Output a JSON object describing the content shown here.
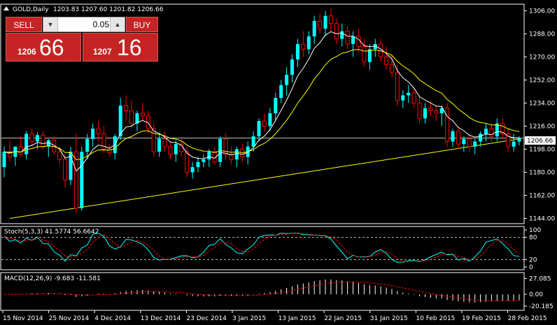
{
  "header": {
    "symbol_label": "GOLD,Daily",
    "ohlc": "1203.83 1207.60 1201.82 1206.66"
  },
  "trade_panel": {
    "sell_label": "SELL",
    "buy_label": "BUY",
    "lot_value": "0.05",
    "sell_price_small": "1206",
    "sell_price_big": "66",
    "buy_price_small": "1207",
    "buy_price_big": "16"
  },
  "price_axis": {
    "ticks": [
      "1306.00",
      "1288.00",
      "1270.00",
      "1252.00",
      "1234.00",
      "1216.00",
      "1198.00",
      "1180.00",
      "1162.00",
      "1144.00"
    ],
    "current_price": "1206.66"
  },
  "stoch": {
    "label": "Stoch(5,3,3) 41.5774 56.6642",
    "ticks": [
      "100",
      "80",
      "20",
      "0"
    ]
  },
  "macd": {
    "label": "MACD(12,26,9) -9.683 -11.581",
    "ticks": [
      "27.085",
      "0.00",
      "-20.185"
    ]
  },
  "time_axis": {
    "labels": [
      "15 Nov 2014",
      "25 Nov 2014",
      "4 Dec 2014",
      "13 Dec 2014",
      "23 Dec 2014",
      "3 Jan 2015",
      "13 Jan 2015",
      "22 Jan 2015",
      "31 Jan 2015",
      "10 Feb 2015",
      "19 Feb 2015",
      "28 Feb 2015"
    ]
  },
  "colors": {
    "bull": "#00ffff",
    "bear": "#ff0000",
    "ma_fast": "#ffffff",
    "ma_slow": "#ffff00",
    "trendline": "#ffff00",
    "stoch_main": "#00ffff",
    "stoch_signal": "#ff0000",
    "macd_hist": "#ffffff",
    "macd_signal": "#ff0000",
    "frame": "#ffffff"
  },
  "chart_data": {
    "type": "candlestick",
    "candles": [
      {
        "o": 1184,
        "h": 1200,
        "l": 1176,
        "c": 1196
      },
      {
        "o": 1196,
        "h": 1205,
        "l": 1188,
        "c": 1192
      },
      {
        "o": 1192,
        "h": 1200,
        "l": 1185,
        "c": 1200
      },
      {
        "o": 1200,
        "h": 1208,
        "l": 1192,
        "c": 1194
      },
      {
        "o": 1194,
        "h": 1212,
        "l": 1190,
        "c": 1210
      },
      {
        "o": 1210,
        "h": 1214,
        "l": 1200,
        "c": 1204
      },
      {
        "o": 1204,
        "h": 1211,
        "l": 1198,
        "c": 1209
      },
      {
        "o": 1209,
        "h": 1212,
        "l": 1198,
        "c": 1200
      },
      {
        "o": 1200,
        "h": 1206,
        "l": 1192,
        "c": 1205
      },
      {
        "o": 1205,
        "h": 1208,
        "l": 1194,
        "c": 1196
      },
      {
        "o": 1196,
        "h": 1200,
        "l": 1186,
        "c": 1190
      },
      {
        "o": 1190,
        "h": 1194,
        "l": 1168,
        "c": 1174
      },
      {
        "o": 1174,
        "h": 1200,
        "l": 1170,
        "c": 1196
      },
      {
        "o": 1196,
        "h": 1210,
        "l": 1148,
        "c": 1152
      },
      {
        "o": 1152,
        "h": 1200,
        "l": 1150,
        "c": 1196
      },
      {
        "o": 1196,
        "h": 1210,
        "l": 1190,
        "c": 1206
      },
      {
        "o": 1206,
        "h": 1218,
        "l": 1200,
        "c": 1214
      },
      {
        "o": 1214,
        "h": 1220,
        "l": 1204,
        "c": 1210
      },
      {
        "o": 1210,
        "h": 1216,
        "l": 1195,
        "c": 1198
      },
      {
        "o": 1198,
        "h": 1202,
        "l": 1192,
        "c": 1195
      },
      {
        "o": 1195,
        "h": 1210,
        "l": 1190,
        "c": 1208
      },
      {
        "o": 1208,
        "h": 1238,
        "l": 1205,
        "c": 1232
      },
      {
        "o": 1232,
        "h": 1240,
        "l": 1220,
        "c": 1228
      },
      {
        "o": 1228,
        "h": 1236,
        "l": 1215,
        "c": 1218
      },
      {
        "o": 1218,
        "h": 1228,
        "l": 1212,
        "c": 1226
      },
      {
        "o": 1226,
        "h": 1234,
        "l": 1220,
        "c": 1224
      },
      {
        "o": 1224,
        "h": 1228,
        "l": 1210,
        "c": 1214
      },
      {
        "o": 1214,
        "h": 1218,
        "l": 1192,
        "c": 1196
      },
      {
        "o": 1196,
        "h": 1210,
        "l": 1192,
        "c": 1206
      },
      {
        "o": 1206,
        "h": 1212,
        "l": 1196,
        "c": 1200
      },
      {
        "o": 1200,
        "h": 1204,
        "l": 1190,
        "c": 1194
      },
      {
        "o": 1194,
        "h": 1205,
        "l": 1188,
        "c": 1202
      },
      {
        "o": 1202,
        "h": 1206,
        "l": 1192,
        "c": 1196
      },
      {
        "o": 1196,
        "h": 1200,
        "l": 1176,
        "c": 1180
      },
      {
        "o": 1180,
        "h": 1188,
        "l": 1175,
        "c": 1184
      },
      {
        "o": 1184,
        "h": 1192,
        "l": 1180,
        "c": 1188
      },
      {
        "o": 1188,
        "h": 1194,
        "l": 1184,
        "c": 1190
      },
      {
        "o": 1190,
        "h": 1198,
        "l": 1184,
        "c": 1196
      },
      {
        "o": 1196,
        "h": 1200,
        "l": 1186,
        "c": 1188
      },
      {
        "o": 1188,
        "h": 1208,
        "l": 1184,
        "c": 1206
      },
      {
        "o": 1206,
        "h": 1210,
        "l": 1190,
        "c": 1194
      },
      {
        "o": 1194,
        "h": 1200,
        "l": 1186,
        "c": 1190
      },
      {
        "o": 1190,
        "h": 1200,
        "l": 1184,
        "c": 1198
      },
      {
        "o": 1198,
        "h": 1202,
        "l": 1188,
        "c": 1192
      },
      {
        "o": 1192,
        "h": 1204,
        "l": 1186,
        "c": 1200
      },
      {
        "o": 1200,
        "h": 1212,
        "l": 1196,
        "c": 1208
      },
      {
        "o": 1208,
        "h": 1222,
        "l": 1204,
        "c": 1220
      },
      {
        "o": 1220,
        "h": 1226,
        "l": 1212,
        "c": 1216
      },
      {
        "o": 1216,
        "h": 1230,
        "l": 1212,
        "c": 1226
      },
      {
        "o": 1226,
        "h": 1242,
        "l": 1220,
        "c": 1238
      },
      {
        "o": 1238,
        "h": 1252,
        "l": 1234,
        "c": 1248
      },
      {
        "o": 1248,
        "h": 1262,
        "l": 1240,
        "c": 1256
      },
      {
        "o": 1256,
        "h": 1272,
        "l": 1250,
        "c": 1268
      },
      {
        "o": 1268,
        "h": 1284,
        "l": 1262,
        "c": 1280
      },
      {
        "o": 1280,
        "h": 1290,
        "l": 1270,
        "c": 1276
      },
      {
        "o": 1276,
        "h": 1290,
        "l": 1272,
        "c": 1286
      },
      {
        "o": 1286,
        "h": 1302,
        "l": 1280,
        "c": 1298
      },
      {
        "o": 1298,
        "h": 1304,
        "l": 1288,
        "c": 1292
      },
      {
        "o": 1292,
        "h": 1306,
        "l": 1286,
        "c": 1302
      },
      {
        "o": 1302,
        "h": 1308,
        "l": 1290,
        "c": 1296
      },
      {
        "o": 1296,
        "h": 1300,
        "l": 1280,
        "c": 1284
      },
      {
        "o": 1284,
        "h": 1296,
        "l": 1278,
        "c": 1290
      },
      {
        "o": 1290,
        "h": 1294,
        "l": 1276,
        "c": 1280
      },
      {
        "o": 1280,
        "h": 1290,
        "l": 1270,
        "c": 1286
      },
      {
        "o": 1286,
        "h": 1292,
        "l": 1274,
        "c": 1278
      },
      {
        "o": 1278,
        "h": 1284,
        "l": 1262,
        "c": 1266
      },
      {
        "o": 1266,
        "h": 1280,
        "l": 1260,
        "c": 1276
      },
      {
        "o": 1276,
        "h": 1284,
        "l": 1270,
        "c": 1280
      },
      {
        "o": 1280,
        "h": 1284,
        "l": 1266,
        "c": 1270
      },
      {
        "o": 1270,
        "h": 1278,
        "l": 1260,
        "c": 1264
      },
      {
        "o": 1264,
        "h": 1272,
        "l": 1254,
        "c": 1258
      },
      {
        "o": 1258,
        "h": 1264,
        "l": 1232,
        "c": 1236
      },
      {
        "o": 1236,
        "h": 1244,
        "l": 1230,
        "c": 1240
      },
      {
        "o": 1240,
        "h": 1248,
        "l": 1234,
        "c": 1242
      },
      {
        "o": 1242,
        "h": 1246,
        "l": 1230,
        "c": 1234
      },
      {
        "o": 1234,
        "h": 1240,
        "l": 1218,
        "c": 1222
      },
      {
        "o": 1222,
        "h": 1234,
        "l": 1218,
        "c": 1230
      },
      {
        "o": 1230,
        "h": 1236,
        "l": 1224,
        "c": 1228
      },
      {
        "o": 1228,
        "h": 1232,
        "l": 1220,
        "c": 1226
      },
      {
        "o": 1226,
        "h": 1232,
        "l": 1216,
        "c": 1230
      },
      {
        "o": 1230,
        "h": 1234,
        "l": 1200,
        "c": 1204
      },
      {
        "o": 1204,
        "h": 1214,
        "l": 1200,
        "c": 1212
      },
      {
        "o": 1212,
        "h": 1216,
        "l": 1198,
        "c": 1202
      },
      {
        "o": 1202,
        "h": 1208,
        "l": 1196,
        "c": 1206
      },
      {
        "o": 1206,
        "h": 1210,
        "l": 1196,
        "c": 1200
      },
      {
        "o": 1200,
        "h": 1206,
        "l": 1194,
        "c": 1204
      },
      {
        "o": 1204,
        "h": 1212,
        "l": 1200,
        "c": 1210
      },
      {
        "o": 1210,
        "h": 1218,
        "l": 1204,
        "c": 1214
      },
      {
        "o": 1214,
        "h": 1218,
        "l": 1204,
        "c": 1208
      },
      {
        "o": 1208,
        "h": 1222,
        "l": 1204,
        "c": 1218
      },
      {
        "o": 1218,
        "h": 1222,
        "l": 1206,
        "c": 1210
      },
      {
        "o": 1210,
        "h": 1214,
        "l": 1196,
        "c": 1200
      },
      {
        "o": 1200,
        "h": 1210,
        "l": 1196,
        "c": 1204
      },
      {
        "o": 1204,
        "h": 1208,
        "l": 1201,
        "c": 1206.66
      }
    ],
    "y_range": [
      1141,
      1310
    ],
    "trendline": [
      [
        1,
        1144
      ],
      [
        93,
        1206
      ]
    ],
    "horizontal_line": 1206.66
  }
}
